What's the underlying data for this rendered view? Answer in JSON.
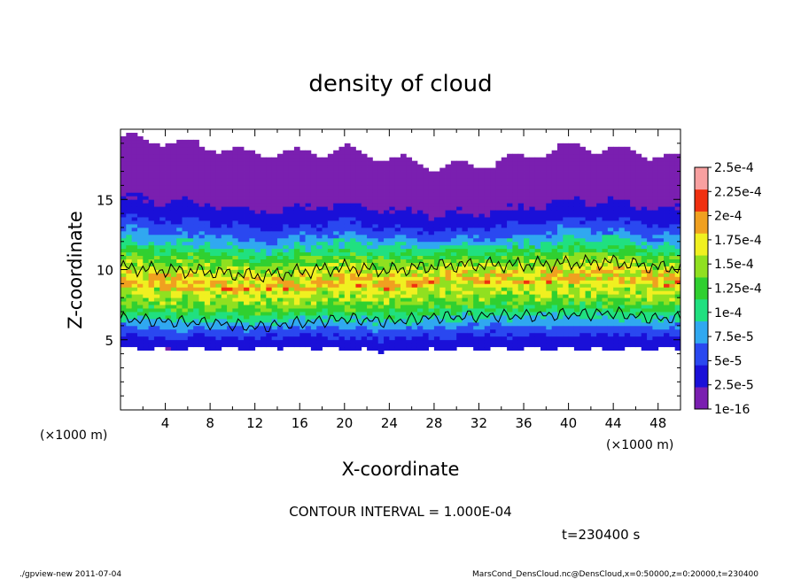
{
  "chart_data": {
    "type": "heatmap",
    "title": "density of cloud",
    "xlabel": "X-coordinate",
    "ylabel": "Z-coordinate",
    "x_unit_left": "(×1000 m)",
    "x_unit_right": "(×1000 m)",
    "xlim": [
      0,
      50
    ],
    "ylim": [
      0,
      20
    ],
    "x_ticks": [
      4,
      8,
      12,
      16,
      20,
      24,
      28,
      32,
      36,
      40,
      44,
      48
    ],
    "y_ticks": [
      5,
      10,
      15
    ],
    "colorbar": {
      "labels": [
        "1e-16",
        "2.5e-5",
        "5e-5",
        "7.5e-5",
        "1e-4",
        "1.25e-4",
        "1.5e-4",
        "1.75e-4",
        "2e-4",
        "2.25e-4",
        "2.5e-4"
      ],
      "colors": [
        "#7a1fb0",
        "#1a10d8",
        "#2a48f0",
        "#30a8f0",
        "#20e080",
        "#30d030",
        "#90e020",
        "#f0f020",
        "#f0a020",
        "#f03010",
        "#f8a0a0"
      ]
    },
    "contour_interval_text": "CONTOUR INTERVAL = 1.000E-04",
    "time_text": "t=230400 s",
    "footer_left": "./gpview-new   2011-07-04",
    "footer_right": "MarsCond_DensCloud.nc@DensCloud,x=0:50000,z=0:20000,t=230400",
    "cloud_profile": [
      {
        "x": 0,
        "top": 19.4,
        "bottom": 4.5,
        "core_z": 8.8
      },
      {
        "x": 4,
        "top": 19.2,
        "bottom": 4.3,
        "core_z": 8.6
      },
      {
        "x": 8,
        "top": 18.8,
        "bottom": 4.4,
        "core_z": 8.5
      },
      {
        "x": 12,
        "top": 18.2,
        "bottom": 4.4,
        "core_z": 8.2
      },
      {
        "x": 16,
        "top": 18.3,
        "bottom": 4.5,
        "core_z": 8.5
      },
      {
        "x": 20,
        "top": 18.6,
        "bottom": 4.3,
        "core_z": 8.8
      },
      {
        "x": 24,
        "top": 18.0,
        "bottom": 4.2,
        "core_z": 8.6
      },
      {
        "x": 28,
        "top": 17.3,
        "bottom": 4.3,
        "core_z": 8.9
      },
      {
        "x": 32,
        "top": 17.4,
        "bottom": 4.4,
        "core_z": 9.0
      },
      {
        "x": 36,
        "top": 18.0,
        "bottom": 4.4,
        "core_z": 9.0
      },
      {
        "x": 40,
        "top": 18.8,
        "bottom": 4.4,
        "core_z": 9.1
      },
      {
        "x": 44,
        "top": 18.6,
        "bottom": 4.3,
        "core_z": 9.2
      },
      {
        "x": 48,
        "top": 18.1,
        "bottom": 4.4,
        "core_z": 8.8
      },
      {
        "x": 50,
        "top": 18.0,
        "bottom": 4.4,
        "core_z": 8.8
      }
    ]
  }
}
